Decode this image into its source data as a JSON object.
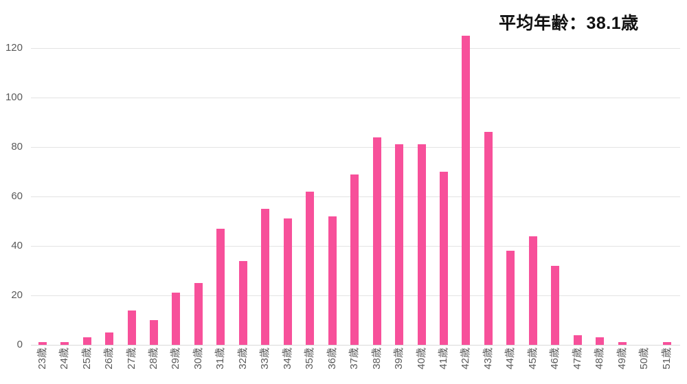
{
  "title": "平均年齢：38.1歳",
  "chart_data": {
    "type": "bar",
    "title": "平均年齢：38.1歳",
    "categories": [
      "23歳",
      "24歳",
      "25歳",
      "26歳",
      "27歳",
      "28歳",
      "29歳",
      "30歳",
      "31歳",
      "32歳",
      "33歳",
      "34歳",
      "35歳",
      "36歳",
      "37歳",
      "38歳",
      "39歳",
      "40歳",
      "41歳",
      "42歳",
      "43歳",
      "44歳",
      "45歳",
      "46歳",
      "47歳",
      "48歳",
      "49歳",
      "50歳",
      "51歳"
    ],
    "values": [
      1,
      1,
      3,
      5,
      14,
      10,
      21,
      25,
      47,
      34,
      55,
      51,
      62,
      52,
      69,
      84,
      81,
      81,
      70,
      125,
      86,
      38,
      44,
      32,
      4,
      3,
      1,
      0,
      1
    ],
    "xlabel": "",
    "ylabel": "",
    "ylim": [
      0,
      130
    ],
    "yticks": [
      0,
      20,
      40,
      60,
      80,
      100,
      120
    ],
    "grid": true,
    "legend_position": "none",
    "colors": {
      "bar": "#F7509A",
      "gridline": "#E3E3E3",
      "baseline": "#D9D9D9",
      "axis_label": "#595959",
      "title": "#111111"
    }
  }
}
